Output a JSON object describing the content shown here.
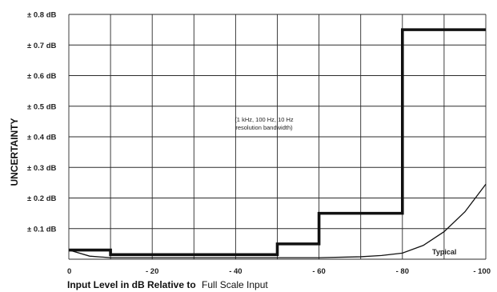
{
  "chart_data": {
    "type": "line",
    "title": "",
    "xlabel_bold": "Input Level in dB Relative to",
    "xlabel_rest": "Full Scale Input",
    "ylabel": "UNCERTAINTY",
    "x_ticks": [
      {
        "value": 0,
        "label": "0"
      },
      {
        "value": -20,
        "label": "- 20"
      },
      {
        "value": -40,
        "label": "- 40"
      },
      {
        "value": -60,
        "label": "- 60"
      },
      {
        "value": -80,
        "label": "- 80"
      },
      {
        "value": -100,
        "label": "- 100"
      }
    ],
    "y_ticks": [
      {
        "value": 0.1,
        "label": "± 0.1 dB"
      },
      {
        "value": 0.2,
        "label": "± 0.2 dB"
      },
      {
        "value": 0.3,
        "label": "± 0.3 dB"
      },
      {
        "value": 0.4,
        "label": "± 0.4 dB"
      },
      {
        "value": 0.5,
        "label": "± 0.5 dB"
      },
      {
        "value": 0.6,
        "label": "± 0.6 dB"
      },
      {
        "value": 0.7,
        "label": "± 0.7 dB"
      },
      {
        "value": 0.8,
        "label": "± 0.8 dB"
      }
    ],
    "xlim": [
      0,
      -100
    ],
    "ylim": [
      0,
      0.8
    ],
    "grid": true,
    "series": [
      {
        "label": "",
        "style": "bold-step",
        "x": [
          0,
          -10,
          -10,
          -50,
          -50,
          -60,
          -60,
          -80,
          -80,
          -100
        ],
        "y": [
          0.03,
          0.03,
          0.015,
          0.015,
          0.05,
          0.05,
          0.15,
          0.15,
          0.75,
          0.75
        ]
      },
      {
        "label": "Typical",
        "style": "thin",
        "x": [
          0,
          -5,
          -10,
          -20,
          -40,
          -60,
          -70,
          -75,
          -80,
          -85,
          -90,
          -95,
          -100
        ],
        "y": [
          0.03,
          0.01,
          0.005,
          0.005,
          0.005,
          0.005,
          0.008,
          0.012,
          0.02,
          0.045,
          0.09,
          0.155,
          0.245
        ]
      }
    ],
    "annotation_line1": "(1 kHz, 100 Hz, 10 Hz",
    "annotation_line2": "resolution bandwidth)",
    "typical_label": "Typical"
  }
}
